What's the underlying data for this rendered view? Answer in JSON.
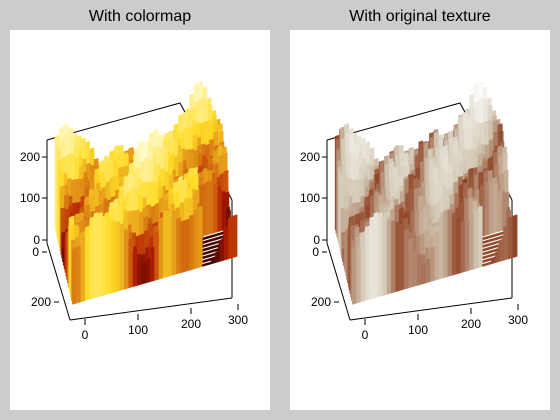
{
  "panels": [
    {
      "title": "With colormap",
      "texture": "colormap"
    },
    {
      "title": "With original texture",
      "texture": "original"
    }
  ],
  "chart_data": {
    "type": "surface3d",
    "subplots": [
      {
        "title": "With colormap",
        "colormap": [
          "#3a0000",
          "#b41e00",
          "#ffdc28",
          "#fffac8"
        ],
        "z_ticks": [
          "0",
          "100",
          "200"
        ],
        "y_ticks": [
          "0",
          "200"
        ],
        "x_ticks": [
          "0",
          "100",
          "200",
          "300"
        ],
        "xlim": [
          0,
          300
        ],
        "ylim": [
          0,
          300
        ],
        "zlim": [
          0,
          260
        ]
      },
      {
        "title": "With original texture",
        "colormap": [
          "#1e1e1e",
          "#8c3c1e",
          "#d2c8b4",
          "#ffffff"
        ],
        "z_ticks": [
          "0",
          "100",
          "200"
        ],
        "y_ticks": [
          "0",
          "200"
        ],
        "x_ticks": [
          "0",
          "100",
          "200",
          "300"
        ],
        "xlim": [
          0,
          300
        ],
        "ylim": [
          0,
          300
        ],
        "zlim": [
          0,
          260
        ]
      }
    ]
  }
}
